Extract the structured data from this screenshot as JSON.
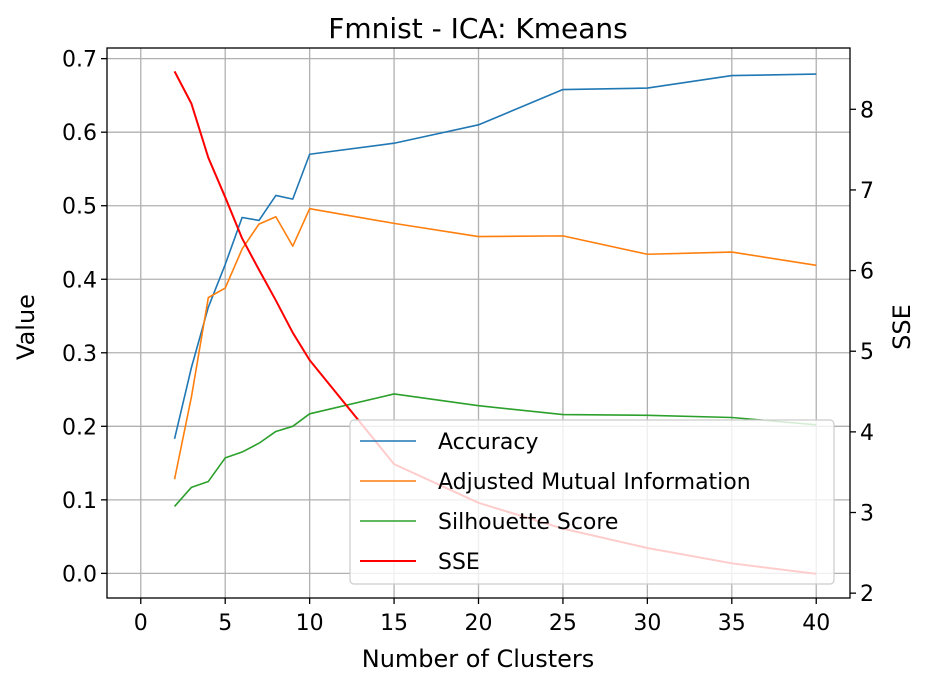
{
  "chart_data": {
    "type": "line",
    "title": "Fmnist - ICA: Kmeans",
    "xlabel": "Number of Clusters",
    "ylabel": "Value",
    "y2label": "SSE",
    "xlim": [
      -2,
      42
    ],
    "ylim": [
      -0.0335,
      0.7145
    ],
    "y2lim": [
      1.94,
      8.76
    ],
    "xticks": [
      "0",
      "5",
      "10",
      "15",
      "20",
      "25",
      "30",
      "35",
      "40"
    ],
    "yticks": [
      "0.0",
      "0.1",
      "0.2",
      "0.3",
      "0.4",
      "0.5",
      "0.6",
      "0.7"
    ],
    "y2ticks": [
      "2",
      "3",
      "4",
      "5",
      "6",
      "7",
      "8"
    ],
    "grid": true,
    "legend_position": "lower-right",
    "x": [
      2,
      3,
      4,
      5,
      6,
      7,
      8,
      9,
      10,
      15,
      20,
      25,
      30,
      35,
      40
    ],
    "series": [
      {
        "name": "Accuracy",
        "axis": "left",
        "color": "#1f77b4",
        "values": [
          0.183,
          0.28,
          0.362,
          0.42,
          0.484,
          0.48,
          0.514,
          0.509,
          0.57,
          0.585,
          0.61,
          0.658,
          0.66,
          0.677,
          0.679
        ]
      },
      {
        "name": "Adjusted Mutual Information",
        "axis": "left",
        "color": "#ff7f0e",
        "values": [
          0.128,
          0.24,
          0.375,
          0.388,
          0.441,
          0.475,
          0.485,
          0.445,
          0.496,
          0.476,
          0.458,
          0.459,
          0.434,
          0.437,
          0.419
        ]
      },
      {
        "name": "Silhouette Score",
        "axis": "left",
        "color": "#2ca02c",
        "values": [
          0.091,
          0.117,
          0.125,
          0.157,
          0.165,
          0.177,
          0.193,
          0.2,
          0.217,
          0.244,
          0.228,
          0.216,
          0.215,
          0.212,
          0.202
        ]
      },
      {
        "name": "SSE",
        "axis": "right",
        "color": "#ff0000",
        "values": [
          8.47,
          8.07,
          7.4,
          6.91,
          6.4,
          6.01,
          5.63,
          5.23,
          4.89,
          3.6,
          3.12,
          2.8,
          2.56,
          2.37,
          2.24
        ]
      }
    ]
  }
}
